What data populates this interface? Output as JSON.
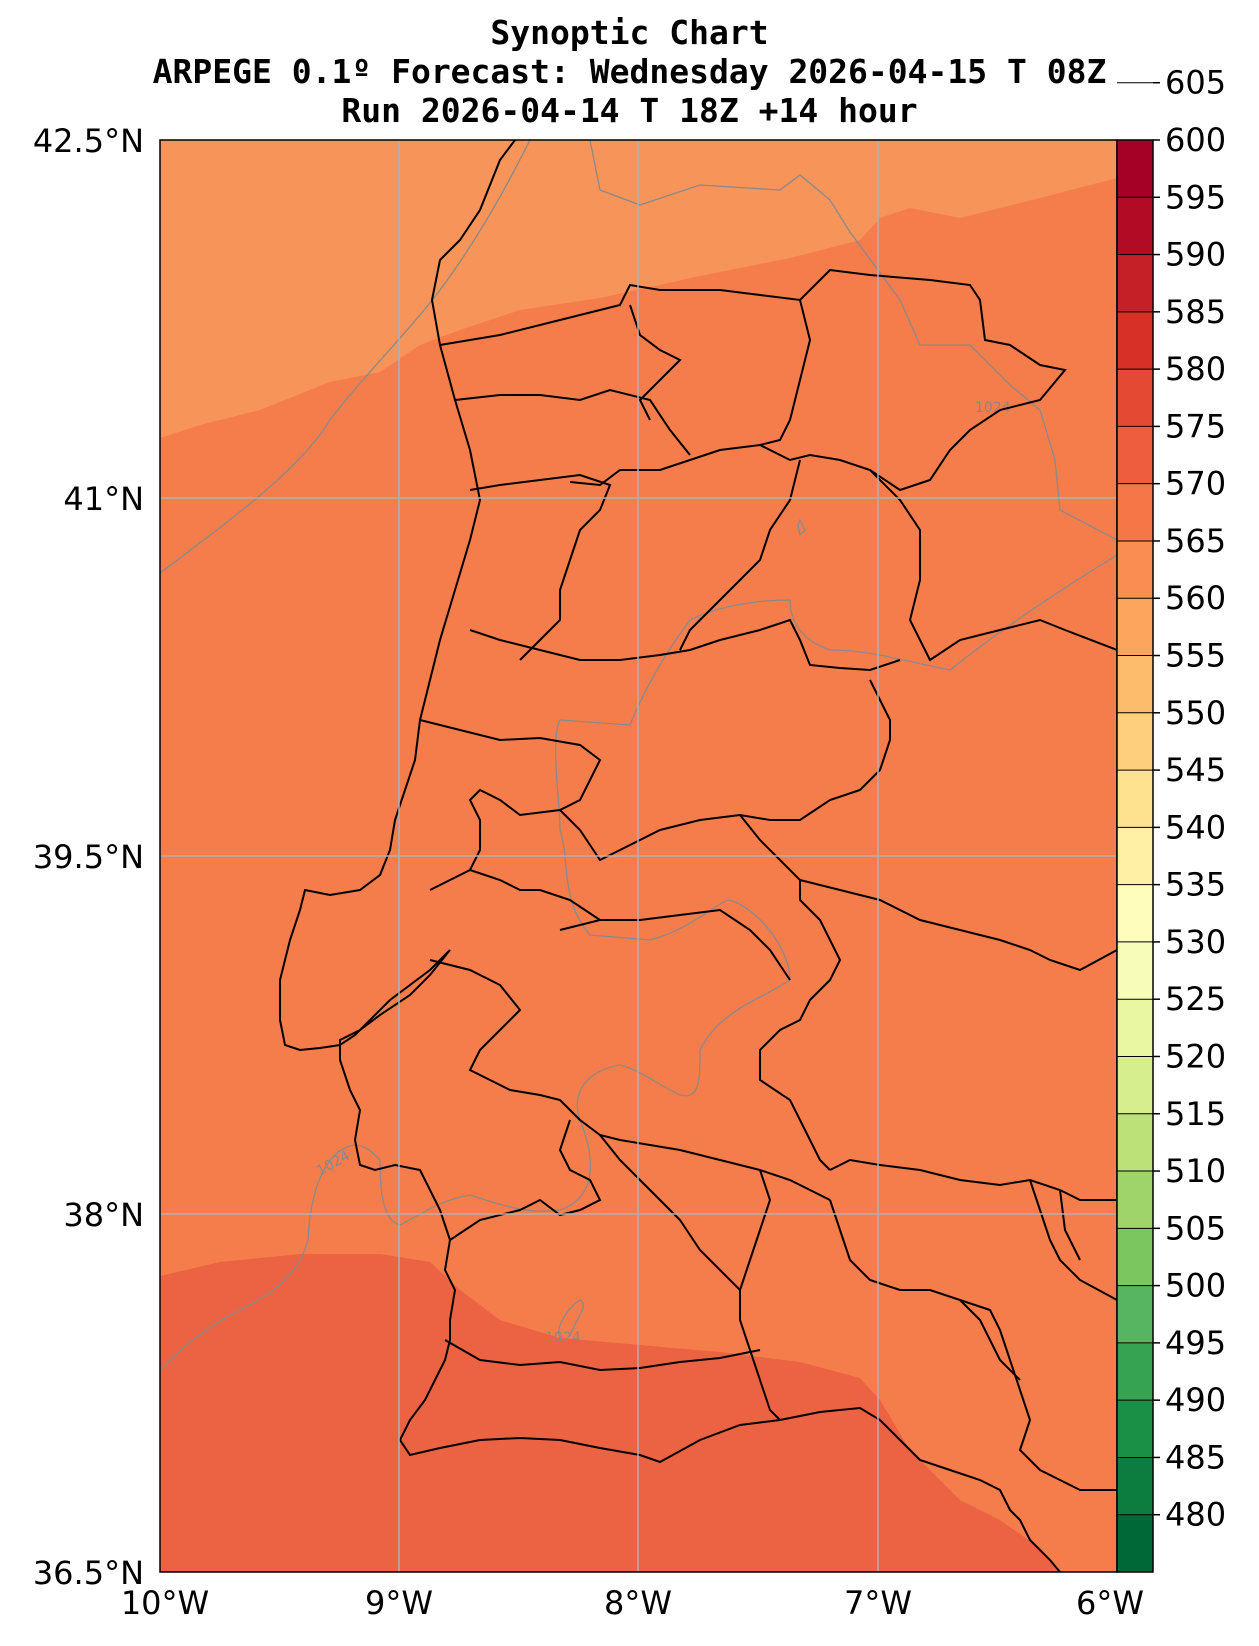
{
  "title": {
    "line1": "Synoptic Chart",
    "line2": "ARPEGE 0.1º Forecast: Wednesday 2026-04-15 T 08Z",
    "line3": "Run 2026-04-14 T 18Z +14 hour"
  },
  "map": {
    "lat_ticks": [
      "42.5°N",
      "41°N",
      "39.5°N",
      "38°N",
      "36.5°N"
    ],
    "lon_ticks": [
      "10°W",
      "9°W",
      "8°W",
      "7°W",
      "6°W"
    ],
    "isobar_labels": [
      "1024",
      "1024",
      "1024"
    ],
    "fill_colors": {
      "band_575_580": "#f7945a",
      "band_580_585": "#f57d4c",
      "band_585_590": "#ec6343"
    }
  },
  "colorbar": {
    "labels": [
      "605",
      "600",
      "595",
      "590",
      "585",
      "580",
      "575",
      "570",
      "565",
      "560",
      "555",
      "550",
      "545",
      "540",
      "535",
      "530",
      "525",
      "520",
      "515",
      "510",
      "505",
      "500",
      "495",
      "490",
      "485",
      "480"
    ],
    "colors": [
      "#006837",
      "#0c7d3e",
      "#199045",
      "#36a352",
      "#56b560",
      "#7cc65f",
      "#9fd46a",
      "#bce178",
      "#d7ee8e",
      "#e9f6a2",
      "#f8fcb9",
      "#fffdbc",
      "#fff0a6",
      "#fee290",
      "#fed07c",
      "#fdbb6c",
      "#fca55d",
      "#f98e52",
      "#f57748",
      "#ee5e3c",
      "#e34933",
      "#d73027",
      "#c51f28",
      "#b10b26",
      "#a50026"
    ]
  }
}
